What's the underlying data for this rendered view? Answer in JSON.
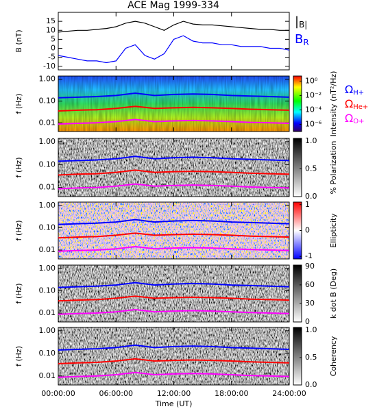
{
  "chart_data": [
    {
      "type": "line",
      "title": "ACE Mag 1999-334",
      "ylabel": "B (nT)",
      "xlim": [
        0,
        24
      ],
      "ylim": [
        -12,
        20
      ],
      "yticks": [
        -10,
        -5,
        0,
        5,
        10,
        15
      ],
      "x": [
        0,
        1,
        2,
        3,
        4,
        5,
        6,
        7,
        8,
        9,
        10,
        11,
        12,
        13,
        14,
        15,
        16,
        17,
        18,
        19,
        20,
        21,
        22,
        23,
        24
      ],
      "series": [
        {
          "name": "|B|",
          "color": "#000000",
          "values": [
            9,
            9.5,
            10,
            10,
            10.5,
            11,
            12,
            14,
            15,
            14,
            12,
            10,
            13,
            15,
            13.5,
            13,
            13,
            12.5,
            12,
            11.5,
            11,
            10.5,
            10.5,
            10,
            10
          ]
        },
        {
          "name": "BR",
          "color": "#0000ff",
          "values": [
            -4,
            -5,
            -6,
            -7,
            -7,
            -8,
            -7,
            0,
            2,
            -4,
            -6,
            -3,
            5,
            7,
            4,
            3,
            3,
            2,
            2,
            1,
            1,
            1,
            0,
            0,
            -1
          ]
        }
      ]
    },
    {
      "type": "spectrogram",
      "ylabel": "f (Hz)",
      "log_y": true,
      "xlim": [
        0,
        24
      ],
      "ylim": [
        0.004,
        1.4
      ],
      "yticks": [
        {
          "value": 1,
          "label": "1.00"
        },
        {
          "value": 0.1,
          "label": "0.10"
        },
        {
          "value": 0.01,
          "label": "0.01"
        }
      ],
      "x": [
        0,
        2,
        4,
        6,
        8,
        10,
        12,
        14,
        16,
        18,
        20,
        22,
        24
      ],
      "series": [
        {
          "name": "ΩH+",
          "color": "#0000ff",
          "values": [
            0.14,
            0.15,
            0.16,
            0.18,
            0.23,
            0.18,
            0.2,
            0.21,
            0.2,
            0.18,
            0.17,
            0.16,
            0.15
          ]
        },
        {
          "name": "ΩHe+",
          "color": "#ff0000",
          "values": [
            0.035,
            0.038,
            0.04,
            0.046,
            0.057,
            0.046,
            0.049,
            0.051,
            0.049,
            0.046,
            0.042,
            0.04,
            0.038
          ]
        },
        {
          "name": "ΩO+",
          "color": "#ff00ff",
          "values": [
            0.0088,
            0.0095,
            0.01,
            0.0114,
            0.0142,
            0.0114,
            0.0123,
            0.0128,
            0.0123,
            0.0114,
            0.0105,
            0.01,
            0.0095
          ]
        }
      ],
      "colorbar": {
        "label": "Intensity (nT²/Hz)",
        "colormap": "rainbow",
        "log": true,
        "lim": [
          1e-07,
          5
        ],
        "ticks": [
          {
            "value": 1,
            "label": "10⁰"
          },
          {
            "value": 0.01,
            "label": "10⁻²"
          },
          {
            "value": 0.0001,
            "label": "10⁻⁴"
          },
          {
            "value": 1e-06,
            "label": "10⁻⁶"
          }
        ]
      }
    },
    {
      "type": "spectrogram",
      "ylabel": "f (Hz)",
      "log_y": true,
      "xlim": [
        0,
        24
      ],
      "ylim": [
        0.004,
        1.4
      ],
      "yticks": [
        {
          "value": 1,
          "label": "1.00"
        },
        {
          "value": 0.1,
          "label": "0.10"
        },
        {
          "value": 0.01,
          "label": "0.01"
        }
      ],
      "x": [
        0,
        2,
        4,
        6,
        8,
        10,
        12,
        14,
        16,
        18,
        20,
        22,
        24
      ],
      "series": [
        {
          "name": "ΩH+",
          "color": "#0000ff",
          "values": [
            0.14,
            0.15,
            0.16,
            0.18,
            0.23,
            0.18,
            0.2,
            0.21,
            0.2,
            0.18,
            0.17,
            0.16,
            0.15
          ]
        },
        {
          "name": "ΩHe+",
          "color": "#ff0000",
          "values": [
            0.035,
            0.038,
            0.04,
            0.046,
            0.057,
            0.046,
            0.049,
            0.051,
            0.049,
            0.046,
            0.042,
            0.04,
            0.038
          ]
        },
        {
          "name": "ΩO+",
          "color": "#ff00ff",
          "values": [
            0.0088,
            0.0095,
            0.01,
            0.0114,
            0.0142,
            0.0114,
            0.0123,
            0.0128,
            0.0123,
            0.0114,
            0.0105,
            0.01,
            0.0095
          ]
        }
      ],
      "colorbar": {
        "label": "% Polarization",
        "colormap": "gray",
        "log": false,
        "lim": [
          0,
          1.05
        ],
        "ticks": [
          {
            "value": 1,
            "label": "1.0"
          },
          0.5,
          {
            "value": 0,
            "label": "0.0"
          }
        ]
      }
    },
    {
      "type": "spectrogram",
      "ylabel": "f (Hz)",
      "log_y": true,
      "xlim": [
        0,
        24
      ],
      "ylim": [
        0.004,
        1.4
      ],
      "yticks": [
        {
          "value": 1,
          "label": "1.00"
        },
        {
          "value": 0.1,
          "label": "0.10"
        },
        {
          "value": 0.01,
          "label": "0.01"
        }
      ],
      "x": [
        0,
        2,
        4,
        6,
        8,
        10,
        12,
        14,
        16,
        18,
        20,
        22,
        24
      ],
      "series": [
        {
          "name": "ΩH+",
          "color": "#0000ff",
          "values": [
            0.14,
            0.15,
            0.16,
            0.18,
            0.23,
            0.18,
            0.2,
            0.21,
            0.2,
            0.18,
            0.17,
            0.16,
            0.15
          ]
        },
        {
          "name": "ΩHe+",
          "color": "#ff0000",
          "values": [
            0.035,
            0.038,
            0.04,
            0.046,
            0.057,
            0.046,
            0.049,
            0.051,
            0.049,
            0.046,
            0.042,
            0.04,
            0.038
          ]
        },
        {
          "name": "ΩO+",
          "color": "#ff00ff",
          "values": [
            0.0088,
            0.0095,
            0.01,
            0.0114,
            0.0142,
            0.0114,
            0.0123,
            0.0128,
            0.0123,
            0.0114,
            0.0105,
            0.01,
            0.0095
          ]
        }
      ],
      "colorbar": {
        "label": "Ellipticity",
        "colormap": "redblue",
        "log": false,
        "lim": [
          -1.1,
          1.1
        ],
        "ticks": [
          1,
          0,
          -1
        ]
      }
    },
    {
      "type": "spectrogram",
      "ylabel": "f (Hz)",
      "log_y": true,
      "xlim": [
        0,
        24
      ],
      "ylim": [
        0.004,
        1.4
      ],
      "yticks": [
        {
          "value": 1,
          "label": "1.00"
        },
        {
          "value": 0.1,
          "label": "0.10"
        },
        {
          "value": 0.01,
          "label": "0.01"
        }
      ],
      "x": [
        0,
        2,
        4,
        6,
        8,
        10,
        12,
        14,
        16,
        18,
        20,
        22,
        24
      ],
      "series": [
        {
          "name": "ΩH+",
          "color": "#0000ff",
          "values": [
            0.14,
            0.15,
            0.16,
            0.18,
            0.23,
            0.18,
            0.2,
            0.21,
            0.2,
            0.18,
            0.17,
            0.16,
            0.15
          ]
        },
        {
          "name": "ΩHe+",
          "color": "#ff0000",
          "values": [
            0.035,
            0.038,
            0.04,
            0.046,
            0.057,
            0.046,
            0.049,
            0.051,
            0.049,
            0.046,
            0.042,
            0.04,
            0.038
          ]
        },
        {
          "name": "ΩO+",
          "color": "#ff00ff",
          "values": [
            0.0088,
            0.0095,
            0.01,
            0.0114,
            0.0142,
            0.0114,
            0.0123,
            0.0128,
            0.0123,
            0.0114,
            0.0105,
            0.01,
            0.0095
          ]
        }
      ],
      "colorbar": {
        "label": "k dot B (Deg)",
        "colormap": "gray",
        "log": false,
        "lim": [
          0,
          92
        ],
        "ticks": [
          90,
          60,
          30,
          0
        ]
      }
    },
    {
      "type": "spectrogram",
      "ylabel": "f (Hz)",
      "log_y": true,
      "xlim": [
        0,
        24
      ],
      "ylim": [
        0.004,
        1.4
      ],
      "yticks": [
        {
          "value": 1,
          "label": "1.00"
        },
        {
          "value": 0.1,
          "label": "0.10"
        },
        {
          "value": 0.01,
          "label": "0.01"
        }
      ],
      "x": [
        0,
        2,
        4,
        6,
        8,
        10,
        12,
        14,
        16,
        18,
        20,
        22,
        24
      ],
      "series": [
        {
          "name": "ΩH+",
          "color": "#0000ff",
          "values": [
            0.14,
            0.15,
            0.16,
            0.18,
            0.23,
            0.18,
            0.2,
            0.21,
            0.2,
            0.18,
            0.17,
            0.16,
            0.15
          ]
        },
        {
          "name": "ΩHe+",
          "color": "#ff0000",
          "values": [
            0.035,
            0.038,
            0.04,
            0.046,
            0.057,
            0.046,
            0.049,
            0.051,
            0.049,
            0.046,
            0.042,
            0.04,
            0.038
          ]
        },
        {
          "name": "ΩO+",
          "color": "#ff00ff",
          "values": [
            0.0088,
            0.0095,
            0.01,
            0.0114,
            0.0142,
            0.0114,
            0.0123,
            0.0128,
            0.0123,
            0.0114,
            0.0105,
            0.01,
            0.0095
          ]
        }
      ],
      "colorbar": {
        "label": "Coherency",
        "colormap": "gray",
        "log": false,
        "lim": [
          0,
          1.05
        ],
        "ticks": [
          {
            "value": 1,
            "label": "1.0"
          },
          0.5,
          {
            "value": 0,
            "label": "0.0"
          }
        ]
      },
      "xlabel": "Time (UT)",
      "xticks": [
        {
          "value": 0,
          "label": "00:00:00"
        },
        {
          "value": 6,
          "label": "06:00:00"
        },
        {
          "value": 12,
          "label": "12:00:00"
        },
        {
          "value": 18,
          "label": "18:00:00"
        },
        {
          "value": 24,
          "label": "24:00:00"
        }
      ]
    }
  ]
}
